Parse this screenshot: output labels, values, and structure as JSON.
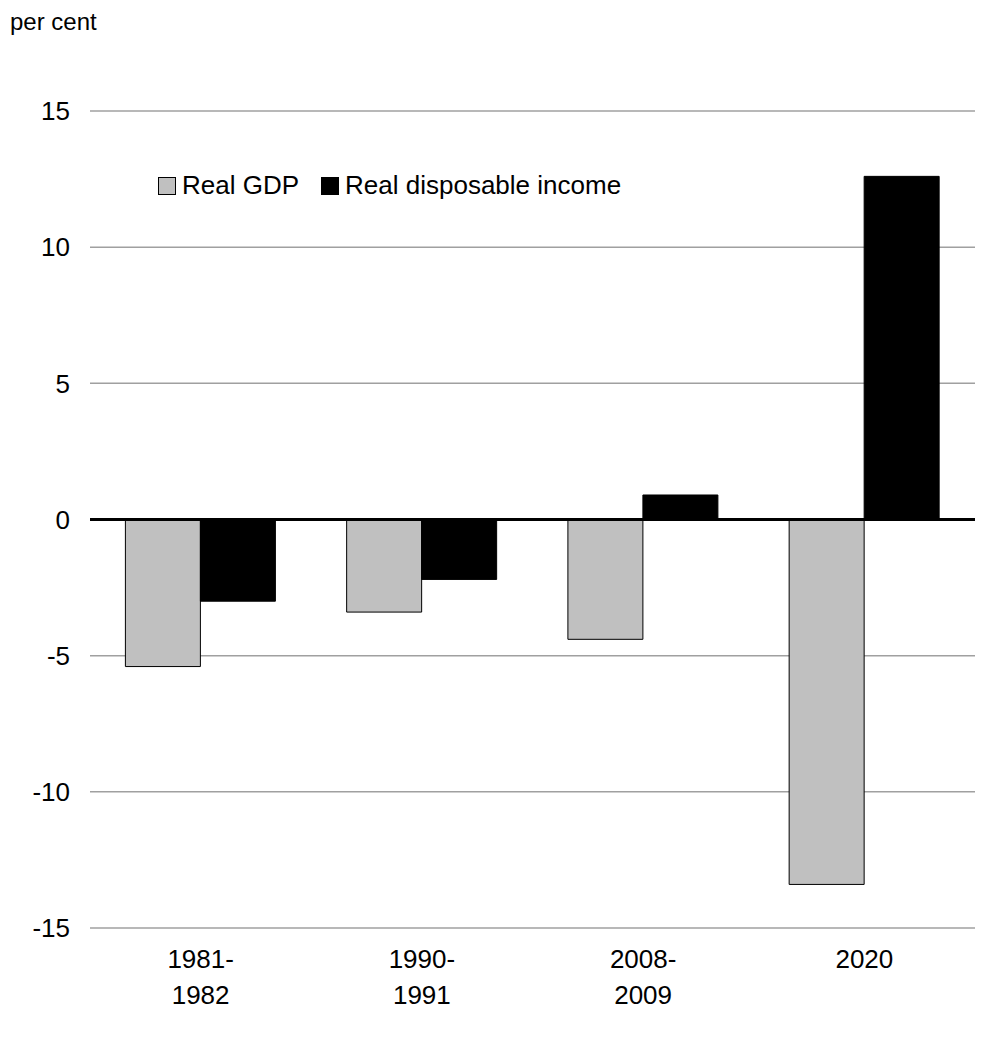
{
  "chart_data": {
    "type": "bar",
    "y_label": "per cent",
    "categories": [
      "1981-1982",
      "1990-1991",
      "2008-2009",
      "2020"
    ],
    "series": [
      {
        "name": "Real GDP",
        "color": "#c0c0c0",
        "values": [
          -5.4,
          -3.4,
          -4.4,
          -13.4
        ]
      },
      {
        "name": "Real disposable income",
        "color": "#000000",
        "values": [
          -3.0,
          -2.2,
          0.9,
          12.6
        ]
      }
    ],
    "ylim": [
      -15,
      15
    ],
    "yticks": [
      -15,
      -10,
      -5,
      0,
      5,
      10,
      15
    ],
    "grid": true,
    "legend": "top-left"
  }
}
